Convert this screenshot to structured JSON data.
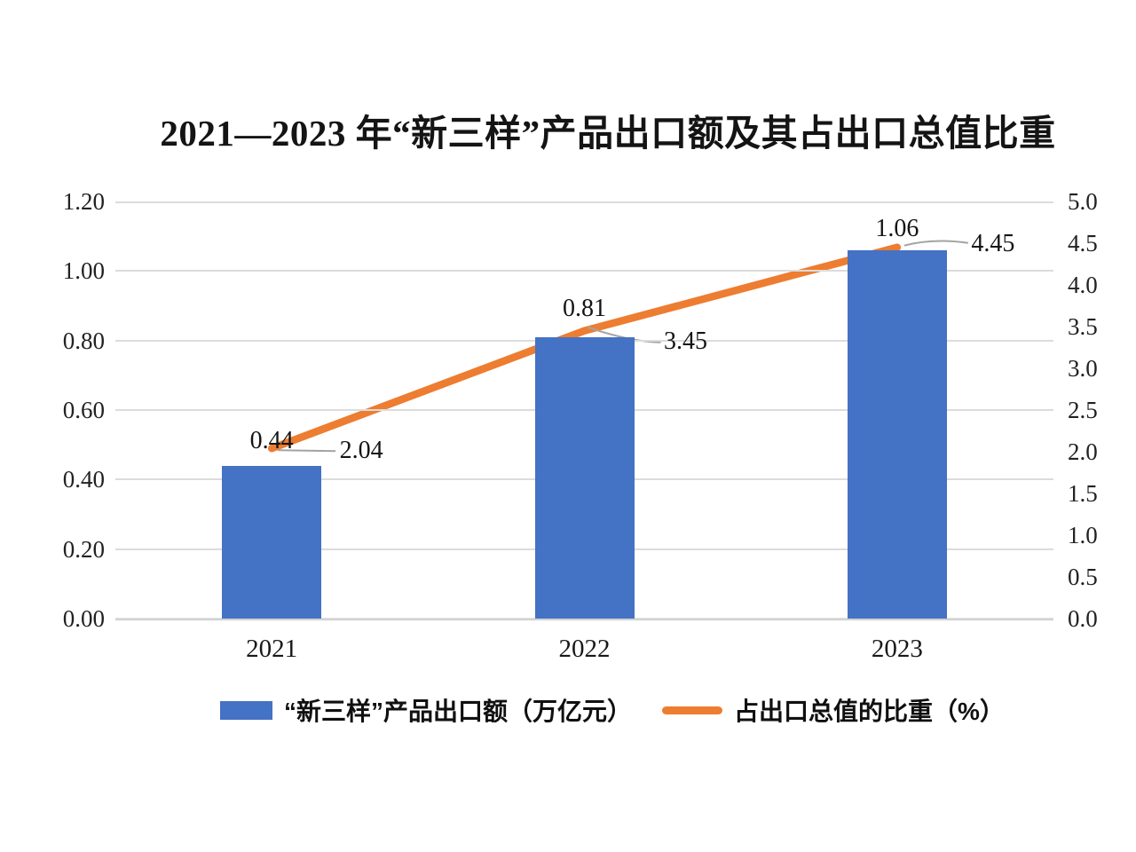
{
  "title": "2021—2023 年“新三样”产品出口额及其占出口总值比重",
  "chart_data": {
    "type": "combo",
    "categories": [
      "2021",
      "2022",
      "2023"
    ],
    "series": [
      {
        "name": "“新三样”产品出口额（万亿元）",
        "type": "bar",
        "axis": "left",
        "color": "#4472C4",
        "values": [
          0.44,
          0.81,
          1.06
        ],
        "labels": [
          "0.44",
          "0.81",
          "1.06"
        ]
      },
      {
        "name": "占出口总值的比重（%）",
        "type": "line",
        "axis": "right",
        "color": "#ED7D31",
        "values": [
          2.04,
          3.45,
          4.45
        ],
        "labels": [
          "2.04",
          "3.45",
          "4.45"
        ]
      }
    ],
    "left_axis": {
      "min": 0,
      "max": 1.2,
      "step": 0.2,
      "ticks": [
        "1.20",
        "1.00",
        "0.80",
        "0.60",
        "0.40",
        "0.20",
        "0.00"
      ]
    },
    "right_axis": {
      "min": 0,
      "max": 5,
      "step": 0.5,
      "ticks": [
        "5.0",
        "4.5",
        "4.0",
        "3.5",
        "3.0",
        "2.5",
        "2.0",
        "1.5",
        "1.0",
        "0.5",
        "0.0"
      ]
    },
    "grid": true,
    "legend_position": "bottom",
    "leader_line_color": "#a3a3a3"
  }
}
